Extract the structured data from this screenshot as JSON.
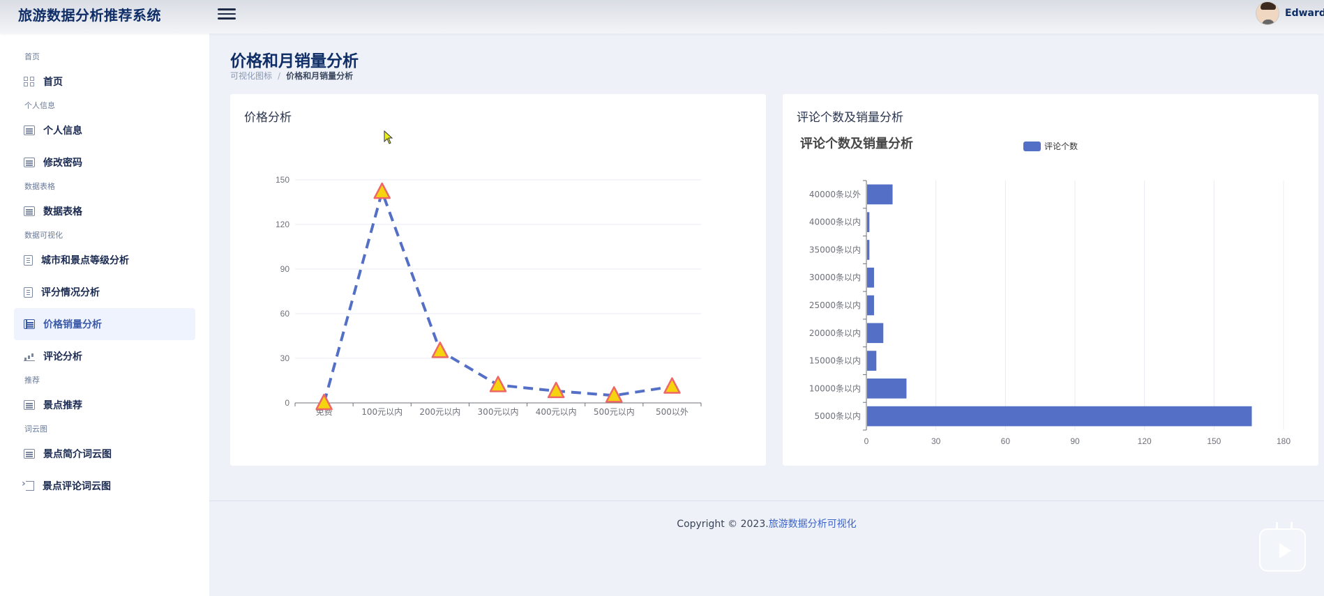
{
  "app": {
    "title": "旅游数据分析推荐系统"
  },
  "user": {
    "name": "Edward"
  },
  "sidebar": {
    "groups": [
      {
        "section": "首页",
        "items": [
          {
            "label": "首页",
            "icon": "grid-icon"
          }
        ]
      },
      {
        "section": "个人信息",
        "items": [
          {
            "label": "个人信息",
            "icon": "list-icon"
          },
          {
            "label": "修改密码",
            "icon": "list-icon"
          }
        ]
      },
      {
        "section": "数据表格",
        "items": [
          {
            "label": "数据表格",
            "icon": "list-icon"
          }
        ]
      },
      {
        "section": "数据可视化",
        "items": [
          {
            "label": "城市和景点等级分析",
            "icon": "document-icon"
          },
          {
            "label": "评分情况分析",
            "icon": "document-icon"
          },
          {
            "label": "价格销量分析",
            "icon": "table-icon",
            "active": true
          },
          {
            "label": "评论分析",
            "icon": "bar-chart-icon"
          }
        ]
      },
      {
        "section": "推荐",
        "items": [
          {
            "label": "景点推荐",
            "icon": "list-icon"
          }
        ]
      },
      {
        "section": "词云图",
        "items": [
          {
            "label": "景点简介词云图",
            "icon": "list-icon"
          },
          {
            "label": "景点评论词云图",
            "icon": "sign-in-icon"
          }
        ]
      }
    ]
  },
  "page": {
    "title": "价格和月销量分析",
    "breadcrumb": {
      "parent": "可视化图标",
      "current": "价格和月销量分析"
    }
  },
  "cards": {
    "left_title": "价格分析",
    "right_title": "评论个数及销量分析"
  },
  "chart_data": [
    {
      "type": "line",
      "categories": [
        "免费",
        "100元以内",
        "200元以内",
        "300元以内",
        "400元以内",
        "500元以内",
        "500以外"
      ],
      "values": [
        0,
        142,
        35,
        12,
        8,
        5,
        11
      ],
      "ylim": [
        0,
        150
      ],
      "yticks": [
        0,
        30,
        60,
        90,
        120,
        150
      ],
      "line_style": "dashed",
      "line_color": "#5470c6",
      "marker": "triangle",
      "marker_fill": "#f5d40f",
      "marker_stroke": "#ee6666",
      "grid": "horizontal"
    },
    {
      "type": "bar",
      "orientation": "horizontal",
      "title": "评论个数及销量分析",
      "legend": "top-center",
      "series": [
        {
          "name": "评论个数",
          "color": "#5470c6"
        }
      ],
      "categories": [
        "5000条以内",
        "10000条以内",
        "15000条以内",
        "20000条以内",
        "25000条以内",
        "30000条以内",
        "35000条以内",
        "40000条以内",
        "40000条以外"
      ],
      "values": [
        166,
        17,
        4,
        7,
        3,
        3,
        1,
        1,
        11
      ],
      "xlim": [
        0,
        180
      ],
      "xticks": [
        0,
        30,
        60,
        90,
        120,
        150,
        180
      ],
      "grid": "vertical"
    }
  ],
  "footer": {
    "text": "Copyright © 2023.",
    "link": "旅游数据分析可视化"
  }
}
